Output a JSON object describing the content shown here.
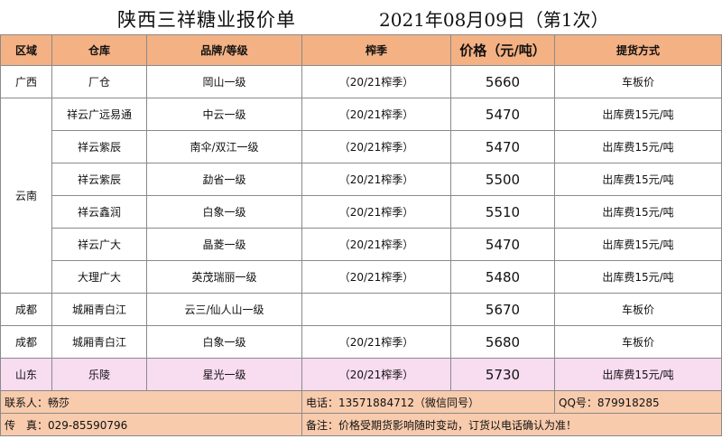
{
  "title": "陕西三祥糖业报价单",
  "date": "2021年08月09日（第1次）",
  "columns": [
    "区域",
    "仓库",
    "品牌/等级",
    "榨季",
    "价格（元/吨）",
    "提货方式"
  ],
  "rows": [
    {
      "region": "广西",
      "warehouse": "厂仓",
      "brand": "岡山一级",
      "season": "（20/21榨季）",
      "price": "5660",
      "delivery": "车板价"
    },
    {
      "region": "云南",
      "warehouse": "祥云广远易通",
      "brand": "中云一级",
      "season": "（20/21榨季）",
      "price": "5470",
      "delivery": "出库费15元/吨"
    },
    {
      "region": "",
      "warehouse": "祥云紫辰",
      "brand": "南伞/双江一级",
      "season": "（20/21榨季）",
      "price": "5470",
      "delivery": "出库费15元/吨"
    },
    {
      "region": "",
      "warehouse": "祥云紫辰",
      "brand": "勐省一级",
      "season": "（20/21榨季）",
      "price": "5500",
      "delivery": "出库费15元/吨"
    },
    {
      "region": "",
      "warehouse": "祥云鑫润",
      "brand": "白象一级",
      "season": "（20/21榨季）",
      "price": "5510",
      "delivery": "出库费15元/吨"
    },
    {
      "region": "",
      "warehouse": "祥云广大",
      "brand": "晶菱一级",
      "season": "（20/21榨季）",
      "price": "5470",
      "delivery": "出库费15元/吨"
    },
    {
      "region": "",
      "warehouse": "大理广大",
      "brand": "英茂瑞丽一级",
      "season": "（20/21榨季）",
      "price": "5480",
      "delivery": "出库费15元/吨"
    },
    {
      "region": "成都",
      "warehouse": "城厢青白江",
      "brand": "云三/仙人山一级",
      "season": "",
      "price": "5670",
      "delivery": "车板价"
    },
    {
      "region": "成都",
      "warehouse": "城厢青白江",
      "brand": "白象一级",
      "season": "（20/21榨季）",
      "price": "5680",
      "delivery": "车板价"
    },
    {
      "region": "山东",
      "warehouse": "乐陵",
      "brand": "星光一级",
      "season": "（20/21榨季）",
      "price": "5730",
      "delivery": "出库费15元/吨"
    }
  ],
  "footer": {
    "contact": "联系人：畅莎",
    "phone": "电话：13571884712（微信同号）",
    "qq": "QQ号：879918285",
    "fax": "传　真：029-85590796",
    "note": "备注：价格受期货影响随时变动，订货以电话确认为准！"
  },
  "colors": {
    "header": "#f4b183",
    "highlight_row": "#f8dcf0",
    "footer": "#f8cbad"
  }
}
